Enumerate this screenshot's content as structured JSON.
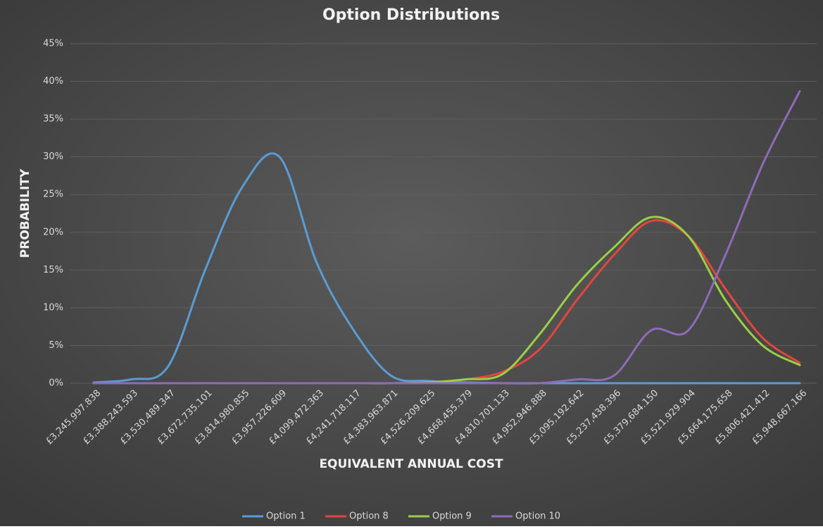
{
  "chart_data": {
    "type": "line",
    "title": "Option Distributions",
    "x_label": "EQUIVALENT ANNUAL COST",
    "y_label": "PROBABILITY",
    "categories": [
      "£3,245,997.838",
      "£3,388,243.593",
      "£3,530,489.347",
      "£3,672,735.101",
      "£3,814,980.855",
      "£3,957,226.609",
      "£4,099,472.363",
      "£4,241,718.117",
      "£4,383,963.871",
      "£4,526,209.625",
      "£4,668,455.379",
      "£4,810,701.133",
      "£4,952,946.888",
      "£5,095,192.642",
      "£5,237,438.396",
      "£5,379,684.150",
      "£5,521,929.904",
      "£5,664,175.658",
      "£5,806,421.412",
      "£5,948,667.166"
    ],
    "series": [
      {
        "name": "Option 1",
        "color": "#5b9bd5",
        "values": [
          0.1,
          0.5,
          2.2,
          15,
          26,
          30,
          16,
          7,
          1,
          0.3,
          0.1,
          0,
          0,
          0,
          0,
          0,
          0,
          0,
          0,
          0
        ]
      },
      {
        "name": "Option 8",
        "color": "#e2463f",
        "values": [
          0,
          0,
          0,
          0,
          0,
          0,
          0,
          0,
          0,
          0.1,
          0.5,
          1.5,
          4.5,
          11,
          17,
          21.5,
          19.5,
          12.5,
          6,
          2.7
        ]
      },
      {
        "name": "Option 9",
        "color": "#9bcf45",
        "values": [
          0,
          0,
          0,
          0,
          0,
          0,
          0,
          0,
          0,
          0.1,
          0.5,
          1.2,
          6.5,
          13,
          18,
          22,
          19.5,
          11,
          5,
          2.4
        ]
      },
      {
        "name": "Option 10",
        "color": "#8e6bb8",
        "values": [
          0,
          0,
          0,
          0,
          0,
          0,
          0,
          0,
          0,
          0,
          0,
          0,
          0,
          0.5,
          1,
          7,
          7,
          17,
          29,
          38.7
        ]
      }
    ],
    "ylim": [
      0,
      45
    ],
    "yticks": [
      {
        "value": 0,
        "label": "0%"
      },
      {
        "value": 5,
        "label": "5%"
      },
      {
        "value": 10,
        "label": "10%"
      },
      {
        "value": 15,
        "label": "15%"
      },
      {
        "value": 20,
        "label": "20%"
      },
      {
        "value": 25,
        "label": "25%"
      },
      {
        "value": 30,
        "label": "30%"
      },
      {
        "value": 35,
        "label": "35%"
      },
      {
        "value": 40,
        "label": "40%"
      },
      {
        "value": 45,
        "label": "45%"
      }
    ],
    "grid": true,
    "legend": "bottom"
  }
}
